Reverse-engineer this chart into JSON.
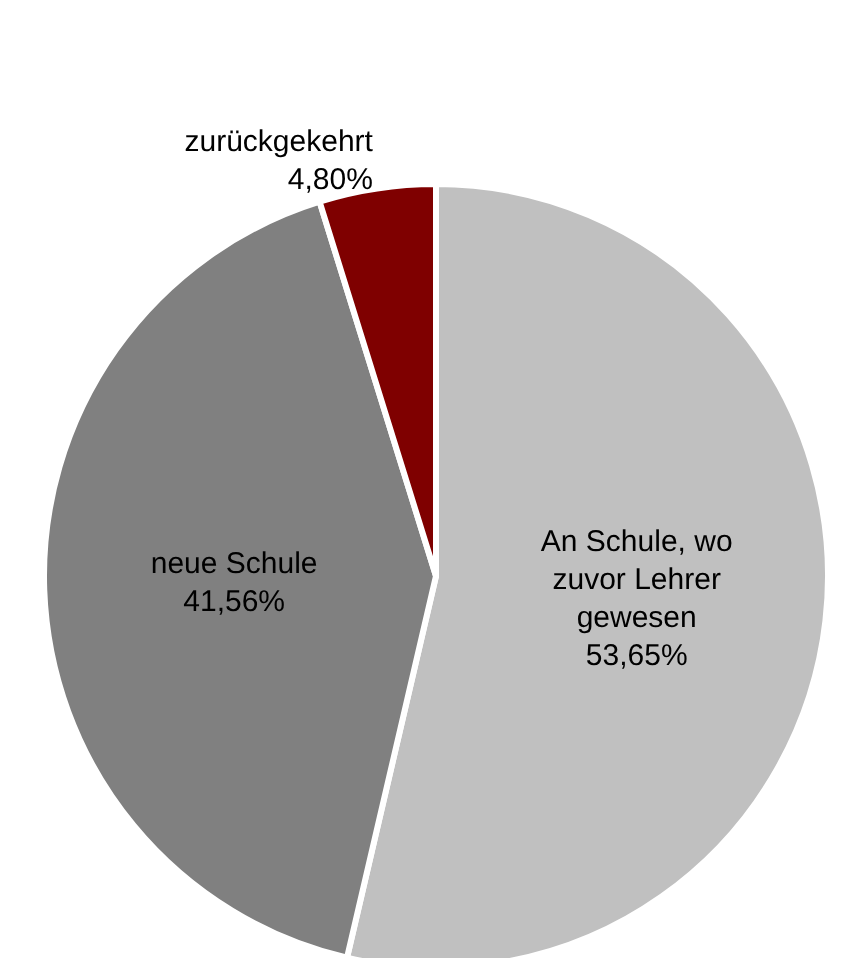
{
  "chart_data": {
    "type": "pie",
    "categories": [
      "An Schule, wo\nzuvor Lehrer\ngewesen",
      "neue Schule",
      "zurückgekehrt"
    ],
    "values": [
      53.65,
      41.56,
      4.8
    ],
    "colors": [
      "#c0c0c0",
      "#808080",
      "#7f0000"
    ],
    "value_labels": [
      "53,65%",
      "41,56%",
      "4,80%"
    ],
    "legend": false
  }
}
